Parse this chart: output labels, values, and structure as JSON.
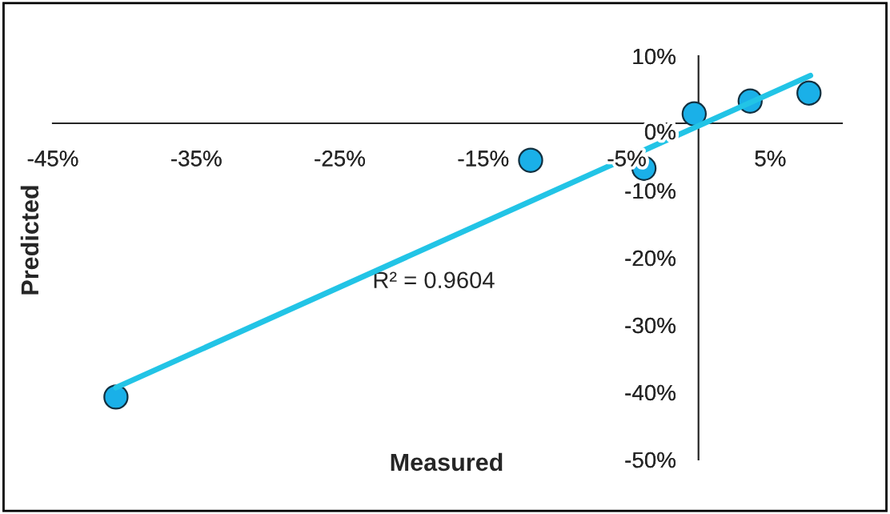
{
  "chart_data": {
    "type": "scatter",
    "xlabel": "Measured",
    "ylabel": "Predicted",
    "annotations": [
      "R² = 0.9604"
    ],
    "xlim": [
      -45,
      10
    ],
    "ylim": [
      -50,
      10
    ],
    "xticks": [
      {
        "value": -45,
        "label": "-45%"
      },
      {
        "value": -35,
        "label": "-35%"
      },
      {
        "value": -25,
        "label": "-25%"
      },
      {
        "value": -15,
        "label": "-15%"
      },
      {
        "value": -5,
        "label": "-5%"
      },
      {
        "value": 5,
        "label": "5%"
      }
    ],
    "yticks": [
      {
        "value": -50,
        "label": "-50%"
      },
      {
        "value": -40,
        "label": "-40%"
      },
      {
        "value": -30,
        "label": "-30%"
      },
      {
        "value": -20,
        "label": "-20%"
      },
      {
        "value": -10,
        "label": "-10%"
      },
      {
        "value": 0,
        "label": "0%"
      },
      {
        "value": 10,
        "label": "10%"
      }
    ],
    "grid": false,
    "legend": false,
    "series": [
      {
        "marker": "circle",
        "color": "#1ab0e8",
        "x": [
          -40.6,
          -11.7,
          -3.8,
          -0.3,
          3.6,
          7.7
        ],
        "values": [
          -40.7,
          -5.5,
          -6.7,
          1.4,
          3.3,
          4.5
        ]
      },
      {
        "type": "line",
        "color": "#22c4e6",
        "x": [
          -40.6,
          7.8
        ],
        "values": [
          -39.3,
          7.1
        ],
        "line_style": "solid"
      }
    ]
  }
}
